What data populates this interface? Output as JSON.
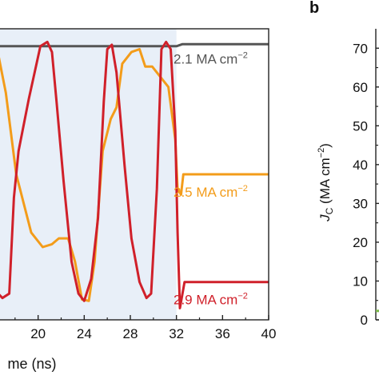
{
  "chart_data": [
    {
      "type": "line",
      "panel_label": "",
      "xlabel": "me (ns)",
      "ylabel": "",
      "xlim": [
        16,
        40
      ],
      "ylim": [
        0,
        1
      ],
      "xticks": [
        20,
        24,
        28,
        32,
        36,
        40
      ],
      "grid": false,
      "shaded_region": {
        "x_start": 16,
        "x_end": 32,
        "color": "#e8eff8"
      },
      "series": [
        {
          "name": "2.1 MA cm−2",
          "color": "#555555",
          "x": [
            16,
            20,
            24,
            28,
            32,
            32.5,
            40
          ],
          "y": [
            0.94,
            0.94,
            0.94,
            0.94,
            0.94,
            0.947,
            0.947
          ]
        },
        {
          "name": "2.5 MA cm−2",
          "color": "#f39c1a",
          "x": [
            16,
            16.4,
            17.2,
            18.1,
            19.4,
            20.4,
            21.2,
            21.8,
            22.6,
            23.2,
            23.8,
            24.4,
            24.9,
            25.6,
            26.3,
            26.8,
            27.3,
            28.1,
            28.8,
            29.3,
            29.9,
            30.5,
            31.3,
            31.9,
            32.1,
            32.4,
            32.6,
            33,
            40
          ],
          "y": [
            0.94,
            0.94,
            0.78,
            0.5,
            0.3,
            0.25,
            0.26,
            0.28,
            0.28,
            0.2,
            0.07,
            0.065,
            0.2,
            0.58,
            0.69,
            0.73,
            0.88,
            0.92,
            0.93,
            0.87,
            0.87,
            0.84,
            0.8,
            0.62,
            0.45,
            0.43,
            0.5,
            0.5,
            0.5
          ]
        },
        {
          "name": "2.9 MA cm−2",
          "color": "#d0202a",
          "x": [
            16,
            16.3,
            16.9,
            17.5,
            17.9,
            18.3,
            19.2,
            20.2,
            20.8,
            21.2,
            21.6,
            22.2,
            22.9,
            23.5,
            24.0,
            24.6,
            25.2,
            25.7,
            26.0,
            26.4,
            26.8,
            27.5,
            28.1,
            28.8,
            29.4,
            29.8,
            30.3,
            30.7,
            31.1,
            31.5,
            31.9,
            32.1,
            32.3,
            32.7,
            40
          ],
          "y": [
            0.22,
            0.1,
            0.075,
            0.09,
            0.42,
            0.58,
            0.76,
            0.94,
            0.955,
            0.92,
            0.75,
            0.48,
            0.2,
            0.09,
            0.065,
            0.14,
            0.35,
            0.75,
            0.93,
            0.945,
            0.85,
            0.53,
            0.28,
            0.13,
            0.075,
            0.09,
            0.45,
            0.93,
            0.955,
            0.93,
            0.65,
            0.3,
            0.04,
            0.13,
            0.13
          ]
        }
      ]
    },
    {
      "type": "line",
      "panel_label": "b",
      "xlabel": "",
      "ylabel_main": "J",
      "ylabel_sub": "C",
      "ylabel_rest": " (MA cm",
      "ylabel_sup": "−2",
      "ylabel_close": ")",
      "ylim": [
        0,
        75
      ],
      "yticks": [
        0,
        10,
        20,
        30,
        40,
        50,
        60,
        70
      ],
      "grid": false,
      "series": [
        {
          "name": "",
          "color": "#7ab648",
          "y": [
            2.3,
            2.3
          ]
        }
      ]
    }
  ]
}
